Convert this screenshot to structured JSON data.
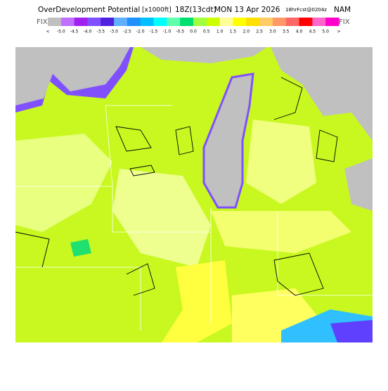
{
  "header": {
    "title": "OverDevelopment Potential",
    "units": "[x1000ft]",
    "valid": "18Z(13cdt)",
    "date": "MON 13 Apr 2026",
    "forecast": "18hrFcst@0204z",
    "model": "NAM",
    "fix_left": "FIX",
    "fix_right": "FIX"
  },
  "colorbar": {
    "labels": [
      "<",
      "-5.0",
      "-4.5",
      "-4.0",
      "-3.5",
      "-3.0",
      "-2.5",
      "-2.0",
      "-1.5",
      "-1.0",
      "-0.5",
      "0.0",
      "0.5",
      "1.0",
      "1.5",
      "2.0",
      "2.5",
      "3.0",
      "3.5",
      "4.0",
      "4.5",
      "5.0",
      ">"
    ],
    "colors": [
      "#c0c0c0",
      "#c070ff",
      "#a020f0",
      "#8050ff",
      "#5020e0",
      "#60b0ff",
      "#2090ff",
      "#00c0ff",
      "#00ffff",
      "#60ffb0",
      "#00e070",
      "#a0ff40",
      "#ccff00",
      "#ffff99",
      "#ffff00",
      "#ffe000",
      "#ffcc66",
      "#ff9966",
      "#ff6666",
      "#ff0000",
      "#ff66cc",
      "#ff00cc"
    ]
  }
}
